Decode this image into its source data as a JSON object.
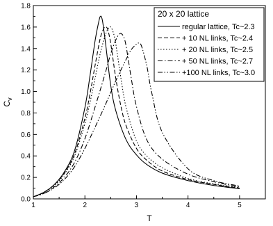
{
  "chart_data": {
    "type": "line",
    "title": "",
    "xlabel": "T",
    "ylabel_main": "C",
    "ylabel_sub": "v",
    "xlim": [
      1,
      5.5
    ],
    "ylim": [
      0.0,
      1.8
    ],
    "x_ticks": [
      1,
      2,
      3,
      4,
      5
    ],
    "x_tick_labels": [
      "1",
      "2",
      "3",
      "4",
      "5"
    ],
    "y_ticks": [
      0.0,
      0.2,
      0.4,
      0.6,
      0.8,
      1.0,
      1.2,
      1.4,
      1.6,
      1.8
    ],
    "y_tick_labels": [
      "0.0",
      "0.2",
      "0.4",
      "0.6",
      "0.8",
      "1.0",
      "1.2",
      "1.4",
      "1.6",
      "1.8"
    ],
    "grid": false,
    "legend": {
      "title": "20 x 20 lattice",
      "position": "top-right"
    },
    "series": [
      {
        "name": "regular lattice, Tc~2.3",
        "dash": "solid",
        "x": [
          1.0,
          1.2,
          1.4,
          1.6,
          1.8,
          2.0,
          2.1,
          2.2,
          2.26,
          2.3,
          2.34,
          2.4,
          2.5,
          2.6,
          2.8,
          3.0,
          3.2,
          3.5,
          4.0,
          4.5,
          5.0
        ],
        "y": [
          0.02,
          0.06,
          0.13,
          0.25,
          0.45,
          0.85,
          1.15,
          1.48,
          1.63,
          1.7,
          1.66,
          1.45,
          1.06,
          0.82,
          0.55,
          0.41,
          0.32,
          0.24,
          0.17,
          0.125,
          0.095
        ]
      },
      {
        "name": "+ 10 NL links, Tc~2.4",
        "dash": "dash",
        "x": [
          1.0,
          1.2,
          1.4,
          1.6,
          1.8,
          2.0,
          2.1,
          2.2,
          2.3,
          2.37,
          2.4,
          2.44,
          2.5,
          2.6,
          2.7,
          2.8,
          3.0,
          3.2,
          3.5,
          4.0,
          4.5,
          5.0
        ],
        "y": [
          0.02,
          0.06,
          0.13,
          0.24,
          0.42,
          0.75,
          0.98,
          1.25,
          1.5,
          1.59,
          1.6,
          1.58,
          1.45,
          1.12,
          0.86,
          0.68,
          0.47,
          0.36,
          0.26,
          0.18,
          0.135,
          0.1
        ]
      },
      {
        "name": "+ 20 NL links, Tc~2.5",
        "dash": "dot",
        "x": [
          1.0,
          1.2,
          1.4,
          1.6,
          1.8,
          2.0,
          2.1,
          2.2,
          2.3,
          2.4,
          2.46,
          2.5,
          2.55,
          2.6,
          2.7,
          2.8,
          3.0,
          3.2,
          3.5,
          4.0,
          4.5,
          5.0
        ],
        "y": [
          0.02,
          0.06,
          0.12,
          0.23,
          0.4,
          0.7,
          0.9,
          1.13,
          1.36,
          1.53,
          1.59,
          1.6,
          1.55,
          1.44,
          1.12,
          0.85,
          0.54,
          0.4,
          0.29,
          0.19,
          0.14,
          0.105
        ]
      },
      {
        "name": "+ 50 NL links, Tc~2.7",
        "dash": "dashdot",
        "x": [
          1.0,
          1.2,
          1.4,
          1.6,
          1.8,
          2.0,
          2.2,
          2.4,
          2.5,
          2.6,
          2.66,
          2.7,
          2.75,
          2.8,
          2.9,
          3.0,
          3.2,
          3.5,
          4.0,
          4.5,
          5.0
        ],
        "y": [
          0.02,
          0.05,
          0.11,
          0.2,
          0.34,
          0.56,
          0.86,
          1.18,
          1.35,
          1.48,
          1.53,
          1.54,
          1.51,
          1.42,
          1.12,
          0.86,
          0.55,
          0.37,
          0.23,
          0.16,
          0.11
        ]
      },
      {
        "name": "+100 NL links, Tc~3.0",
        "dash": "dashdotdot",
        "x": [
          1.0,
          1.2,
          1.4,
          1.6,
          1.8,
          2.0,
          2.2,
          2.4,
          2.6,
          2.8,
          2.9,
          3.0,
          3.05,
          3.1,
          3.2,
          3.3,
          3.5,
          4.0,
          4.5,
          5.0
        ],
        "y": [
          0.02,
          0.05,
          0.1,
          0.18,
          0.3,
          0.47,
          0.67,
          0.88,
          1.1,
          1.3,
          1.39,
          1.44,
          1.45,
          1.42,
          1.24,
          0.98,
          0.62,
          0.28,
          0.17,
          0.12
        ]
      }
    ]
  }
}
